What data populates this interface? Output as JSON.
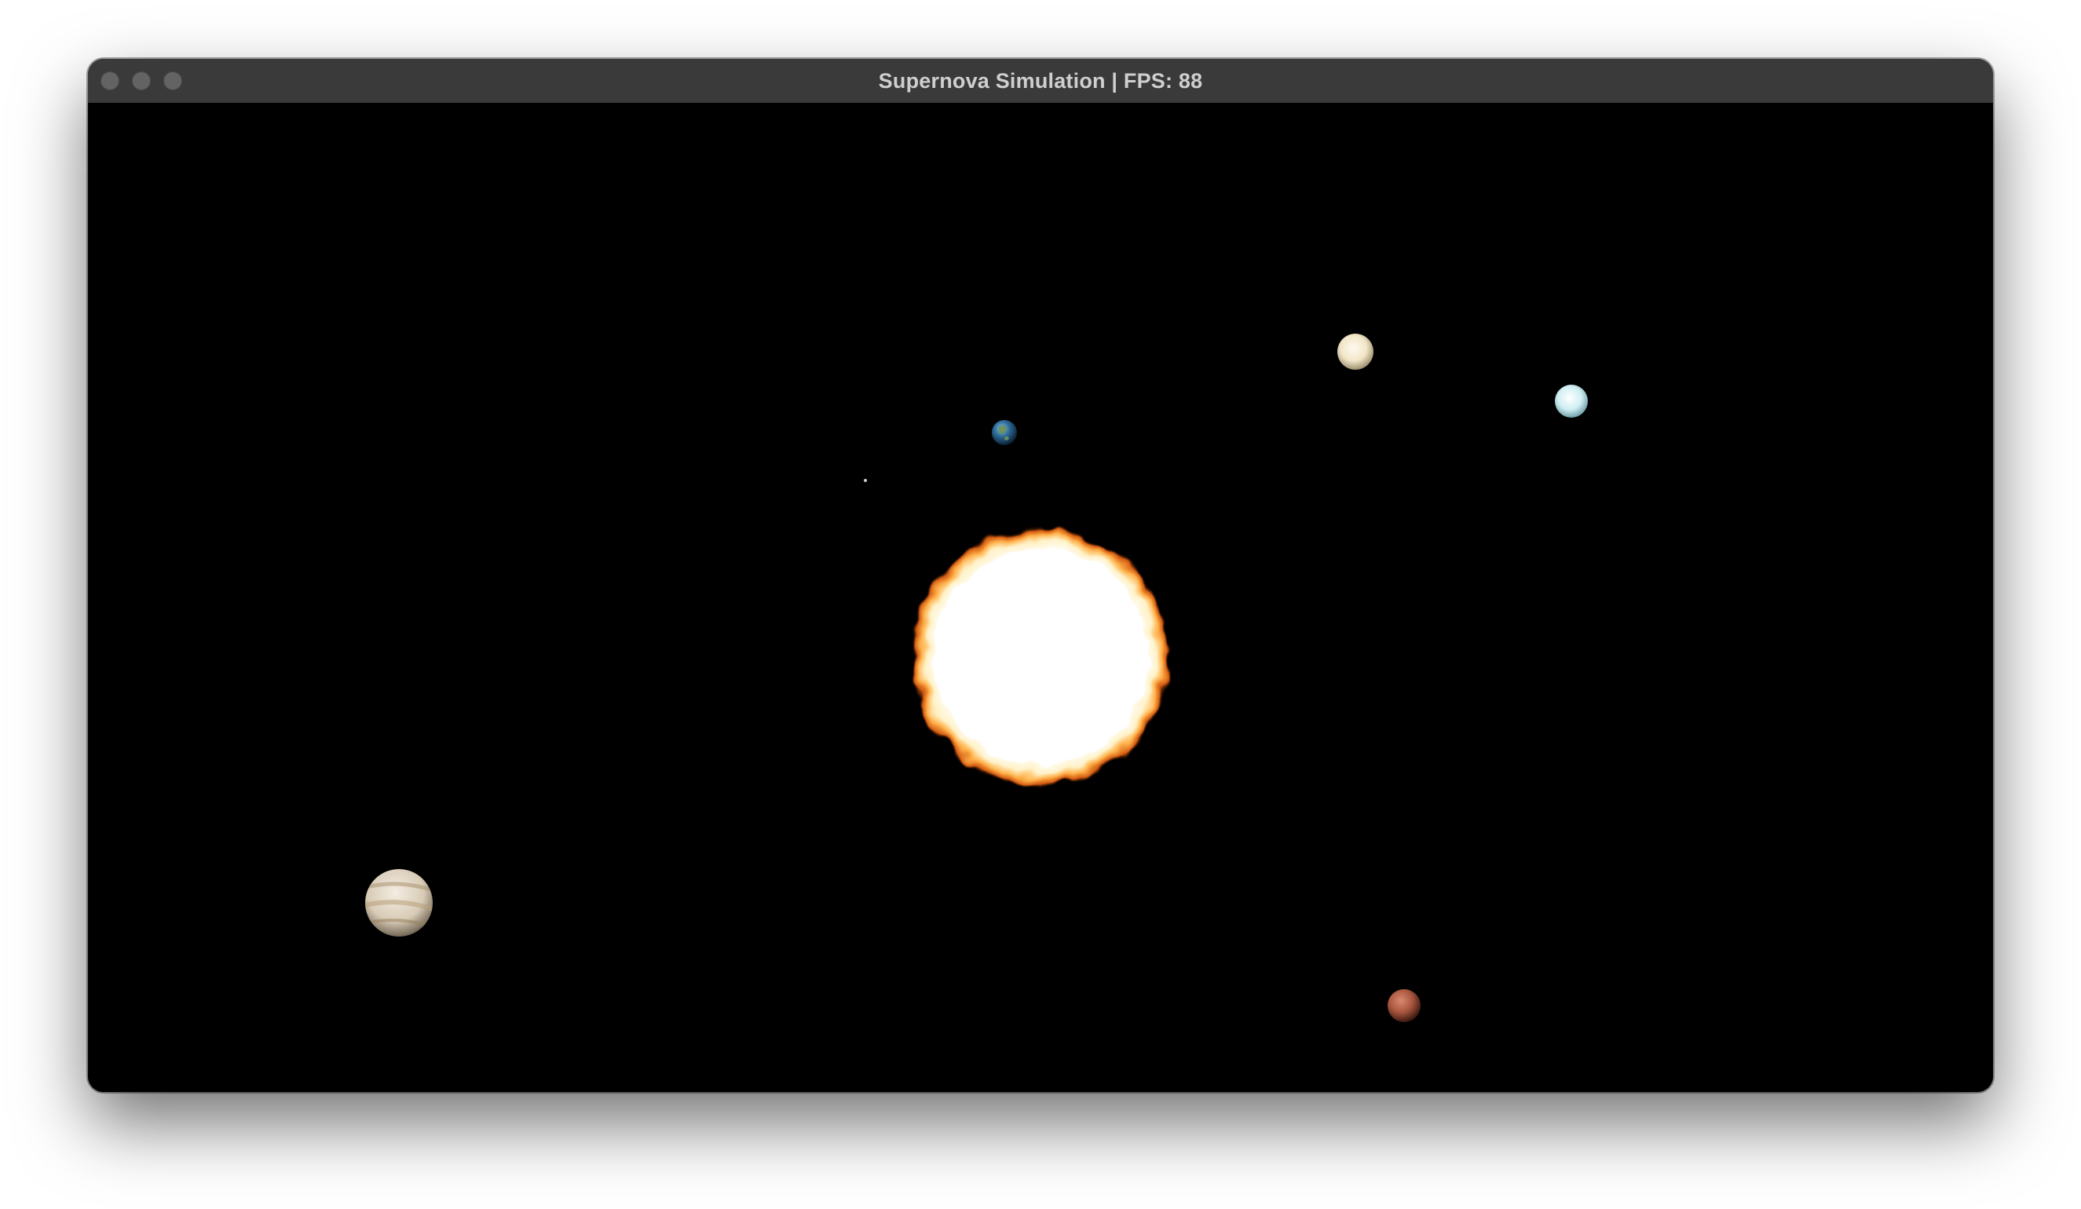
{
  "window": {
    "title": "Supernova Simulation | FPS: 88",
    "controls": [
      "close",
      "minimize",
      "zoom"
    ]
  },
  "scene": {
    "background_color": "#000000",
    "bodies": [
      {
        "name": "sun",
        "icon": "supernova-star",
        "color": "#ffffff",
        "glow": "#ff8a1c"
      },
      {
        "name": "earth",
        "icon": "earth-planet",
        "color": "#2f6d9c"
      },
      {
        "name": "venus",
        "icon": "venus-planet",
        "color": "#f1e6c7"
      },
      {
        "name": "uranus",
        "icon": "uranus-planet",
        "color": "#cfeef3"
      },
      {
        "name": "jupiter",
        "icon": "jupiter-planet",
        "color": "#d8cbb6"
      },
      {
        "name": "mars",
        "icon": "mars-planet",
        "color": "#a8553e"
      },
      {
        "name": "mercury",
        "icon": "mercury-dot",
        "color": "#bfbfbf"
      }
    ]
  }
}
